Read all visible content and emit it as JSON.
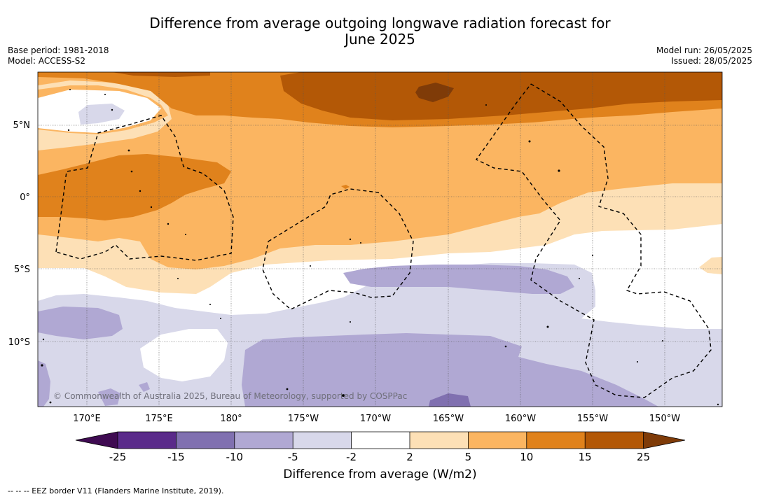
{
  "header": {
    "title_line1": "Difference from average outgoing longwave radiation forecast for",
    "title_line2": "June 2025",
    "base_period": "Base period: 1981-2018",
    "model": "Model: ACCESS-S2",
    "model_run": "Model run: 26/05/2025",
    "issued": "Issued: 28/05/2025"
  },
  "map": {
    "lat_labels": [
      "5°N",
      "0°",
      "5°S",
      "10°S"
    ],
    "lon_labels": [
      "170°E",
      "175°E",
      "180°",
      "175°W",
      "170°W",
      "165°W",
      "160°W",
      "155°W",
      "150°W"
    ],
    "credit": "© Commonwealth of Australia 2025, Bureau of Meteorology, supported by COSPPac",
    "eez_line_style": "dashed",
    "coastline_color": "#000000"
  },
  "colorbar": {
    "labels": [
      "-25",
      "-15",
      "-10",
      "-5",
      "-2",
      "2",
      "5",
      "10",
      "15",
      "25"
    ],
    "colors": [
      "#3f0b52",
      "#5a2a8a",
      "#8070b0",
      "#b0a8d3",
      "#d8d8ea",
      "#ffffff",
      "#fde0b6",
      "#fbb561",
      "#e0821c",
      "#b35806",
      "#7f3b08"
    ],
    "title": "Difference from average (W/m2)"
  },
  "legend": {
    "eez_note": "--  --  -- EEZ border V11 (Flanders Marine Institute, 2019)."
  }
}
